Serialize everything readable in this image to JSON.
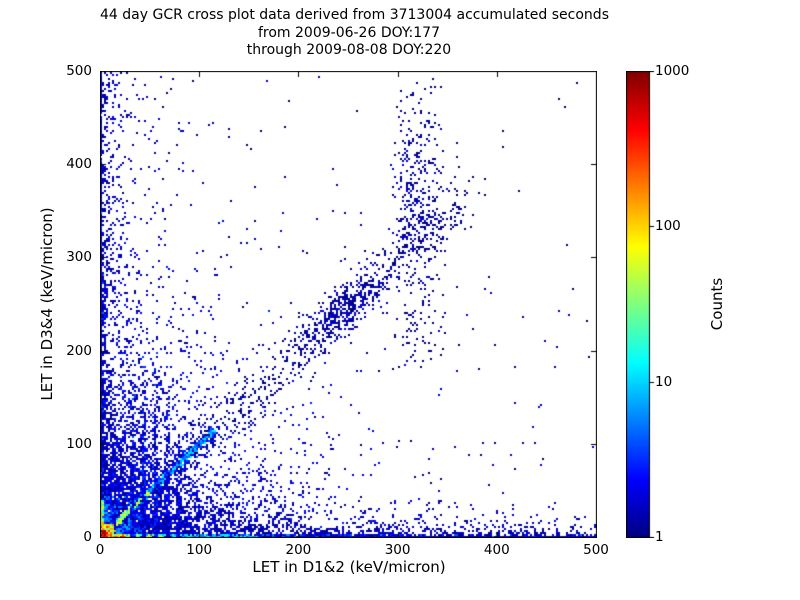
{
  "chart_data": {
    "type": "heatmap",
    "title_lines": [
      "44 day GCR cross plot data derived from 3713004 accumulated seconds",
      "from 2009-06-26 DOY:177",
      "through 2009-08-08 DOY:220"
    ],
    "xlabel": "LET in D1&2 (keV/micron)",
    "ylabel": "LET in D3&4 (keV/micron)",
    "xlim": [
      0,
      500
    ],
    "ylim": [
      0,
      500
    ],
    "xticks": [
      0,
      100,
      200,
      300,
      400,
      500
    ],
    "yticks": [
      0,
      100,
      200,
      300,
      400,
      500
    ],
    "grid": false,
    "background": "#ffffff",
    "frame_color": "#000000",
    "min_count_color": "#000080",
    "max_count_color": "#800000",
    "colorbar": {
      "label": "Counts",
      "scale": "log",
      "min": 1,
      "max": 1000,
      "ticks": [
        1,
        10,
        100,
        1000
      ],
      "colormap": "jet",
      "position": "right"
    },
    "description": "2D histogram of coincident LET in detectors D1&2 vs D3&4; ~1000-count red hot spot at origin, warm band along the x-axis fading red-orange-yellow-cyan-blue with distance, dense blue column along the y-axis, a bright y=x correlation ridge out to ~110 keV/micron continuing as scattered diagonal to ~370 with a blob near 245, faint vertical streaks near x=14,33,44,56,68,79, a loose vertical scatter band near x=320 reaching y=490, and sparse dark-blue single counts elsewhere, densest toward the lower-left.",
    "features": [
      {
        "name": "lower-left-haze",
        "n": 4200,
        "x": {
          "k": "e",
          "a": 0,
          "b": 500,
          "s": 55
        },
        "y": {
          "k": "e",
          "a": 0,
          "b": 500,
          "s": 55
        },
        "c": {
          "min": 1,
          "max": 3
        }
      },
      {
        "name": "broad-haze",
        "n": 500,
        "x": {
          "k": "e",
          "a": 0,
          "b": 500,
          "s": 150
        },
        "y": {
          "k": "e",
          "a": 0,
          "b": 500,
          "s": 150
        },
        "c": {
          "min": 1,
          "max": 2
        }
      },
      {
        "name": "uniform-sparse",
        "n": 80,
        "x": {
          "k": "u",
          "a": 0,
          "b": 500
        },
        "y": {
          "k": "u",
          "a": 0,
          "b": 500
        },
        "c": {
          "min": 1,
          "max": 1
        }
      },
      {
        "name": "left-column",
        "n": 280,
        "x": {
          "k": "e",
          "a": 0,
          "b": 150,
          "s": 35
        },
        "y": {
          "k": "u",
          "a": 100,
          "b": 500
        },
        "c": {
          "min": 1,
          "max": 2
        }
      },
      {
        "name": "left-fuzz",
        "n": 500,
        "x": {
          "k": "e",
          "a": 0,
          "b": 40,
          "s": 10
        },
        "y": {
          "k": "u",
          "a": 0,
          "b": 500
        },
        "c": {
          "min": 1,
          "max": 2
        }
      },
      {
        "name": "left-clump-250",
        "n": 120,
        "x": {
          "k": "e",
          "a": 0,
          "b": 8,
          "s": 3
        },
        "y": {
          "k": "g",
          "m": 250,
          "s": 22
        },
        "c": {
          "min": 1,
          "max": 3
        }
      },
      {
        "name": "left-clump-150",
        "n": 100,
        "x": {
          "k": "e",
          "a": 0,
          "b": 8,
          "s": 3
        },
        "y": {
          "k": "g",
          "m": 150,
          "s": 18
        },
        "c": {
          "min": 1,
          "max": 3
        }
      },
      {
        "name": "bottom-fuzz",
        "n": 1100,
        "x": {
          "k": "e",
          "a": 0,
          "b": 500,
          "s": 400
        },
        "y": {
          "k": "e",
          "a": 0,
          "b": 40,
          "s": 10
        },
        "c": {
          "min": 1,
          "max": 2
        }
      },
      {
        "name": "bottom-line",
        "n": 1500,
        "x": {
          "k": "u",
          "a": 0,
          "b": 500
        },
        "y": {
          "k": "e",
          "a": 0,
          "b": 1.5,
          "s": 1
        },
        "c": {
          "min": 1,
          "max": 2
        }
      },
      {
        "name": "corner-block",
        "n": 900,
        "x": {
          "k": "e",
          "a": 0,
          "b": 45,
          "s": 15
        },
        "y": {
          "k": "e",
          "a": 0,
          "b": 45,
          "s": 15
        },
        "c": {
          "min": 2,
          "max": 8
        }
      },
      {
        "name": "xband-blue",
        "n": 1600,
        "x": {
          "k": "e",
          "a": 0,
          "b": 500,
          "s": 130
        },
        "y": {
          "k": "e",
          "a": 0,
          "b": 4,
          "s": 2
        },
        "c": {
          "min": 1,
          "max": 6
        }
      },
      {
        "name": "xband-far",
        "n": 500,
        "x": {
          "k": "u",
          "a": 200,
          "b": 500
        },
        "y": {
          "k": "e",
          "a": 0,
          "b": 3,
          "s": 1.5
        },
        "c": {
          "min": 1,
          "max": 3
        }
      },
      {
        "name": "xband-cyan",
        "n": 900,
        "x": {
          "k": "e",
          "a": 0,
          "b": 160,
          "s": 50
        },
        "y": {
          "k": "e",
          "a": 0,
          "b": 3.5,
          "s": 1.5
        },
        "c": {
          "min": 4,
          "max": 20
        }
      },
      {
        "name": "xband-green",
        "n": 700,
        "x": {
          "k": "e",
          "a": 0,
          "b": 70,
          "s": 20
        },
        "y": {
          "k": "e",
          "a": 0,
          "b": 3,
          "s": 1.2
        },
        "c": {
          "min": 15,
          "max": 80
        }
      },
      {
        "name": "yband-blue",
        "n": 900,
        "x": {
          "k": "e",
          "a": 0,
          "b": 2.5,
          "s": 1.2
        },
        "y": {
          "k": "e",
          "a": 0,
          "b": 500,
          "s": 120
        },
        "c": {
          "min": 1,
          "max": 5
        }
      },
      {
        "name": "yband-speckle",
        "n": 500,
        "x": {
          "k": "e",
          "a": 0,
          "b": 2,
          "s": 1
        },
        "y": {
          "k": "u",
          "a": 0,
          "b": 500
        },
        "c": {
          "min": 1,
          "max": 3
        }
      },
      {
        "name": "yband-warm",
        "n": 450,
        "x": {
          "k": "e",
          "a": 0,
          "b": 3,
          "s": 1.2
        },
        "y": {
          "k": "e",
          "a": 0,
          "b": 40,
          "s": 15
        },
        "c": {
          "min": 15,
          "max": 150
        }
      },
      {
        "name": "diag-fringe",
        "n": 450,
        "t": {
          "k": "u",
          "a": 0,
          "b": 115
        },
        "sigma": 3.5,
        "c": {
          "min": 1,
          "max": 4
        }
      },
      {
        "name": "diag-mid",
        "n": 550,
        "t": {
          "k": "u",
          "a": 0,
          "b": 115
        },
        "sigma": 1.3,
        "c": {
          "min": 3,
          "max": 15
        }
      },
      {
        "name": "diag-core",
        "n": 500,
        "t": {
          "k": "e",
          "a": 0,
          "b": 50,
          "s": 18
        },
        "sigma": 1.0,
        "c": {
          "min": 15,
          "max": 80
        }
      },
      {
        "name": "diag-extension",
        "n": 520,
        "t": {
          "k": "u",
          "a": 100,
          "b": 370
        },
        "sigma": 12,
        "c": {
          "min": 1,
          "max": 1
        }
      },
      {
        "name": "diag-blob-245",
        "n": 330,
        "t": {
          "k": "g",
          "m": 245,
          "s": 18
        },
        "sigma": 10,
        "c": {
          "min": 1,
          "max": 2
        }
      },
      {
        "name": "streak-x14",
        "n": 120,
        "x": {
          "k": "g",
          "m": 14,
          "s": 1
        },
        "y": {
          "k": "e",
          "a": 0,
          "b": 120,
          "s": 40
        },
        "c": {
          "min": 1,
          "max": 3
        }
      },
      {
        "name": "streak-x33",
        "n": 230,
        "x": {
          "k": "g",
          "m": 33,
          "s": 1.2
        },
        "y": {
          "k": "e",
          "a": 0,
          "b": 170,
          "s": 60
        },
        "c": {
          "min": 1,
          "max": 4
        }
      },
      {
        "name": "streak-x44",
        "n": 260,
        "x": {
          "k": "g",
          "m": 44,
          "s": 1.2
        },
        "y": {
          "k": "e",
          "a": 0,
          "b": 200,
          "s": 70
        },
        "c": {
          "min": 1,
          "max": 4
        }
      },
      {
        "name": "streak-x56",
        "n": 240,
        "x": {
          "k": "g",
          "m": 56,
          "s": 1.2
        },
        "y": {
          "k": "e",
          "a": 0,
          "b": 200,
          "s": 70
        },
        "c": {
          "min": 1,
          "max": 4
        }
      },
      {
        "name": "streak-x68",
        "n": 200,
        "x": {
          "k": "g",
          "m": 68,
          "s": 1.2
        },
        "y": {
          "k": "e",
          "a": 0,
          "b": 160,
          "s": 55
        },
        "c": {
          "min": 1,
          "max": 3
        }
      },
      {
        "name": "streak-x79",
        "n": 150,
        "x": {
          "k": "g",
          "m": 79,
          "s": 1.2
        },
        "y": {
          "k": "e",
          "a": 0,
          "b": 120,
          "s": 45
        },
        "c": {
          "min": 1,
          "max": 3
        }
      },
      {
        "name": "right-vertical-band",
        "n": 230,
        "x": {
          "k": "g",
          "m": 322,
          "s": 14
        },
        "y": {
          "k": "u",
          "a": 180,
          "b": 495
        },
        "c": {
          "min": 1,
          "max": 1
        }
      },
      {
        "name": "right-cluster",
        "n": 200,
        "x": {
          "k": "g",
          "m": 318,
          "s": 12
        },
        "y": {
          "k": "g",
          "m": 360,
          "s": 35
        },
        "c": {
          "min": 1,
          "max": 2
        }
      },
      {
        "name": "xband-hot",
        "n": 900,
        "x": {
          "k": "e",
          "a": 0,
          "b": 25,
          "s": 8
        },
        "y": {
          "k": "e",
          "a": 0,
          "b": 2.5,
          "s": 1
        },
        "c": {
          "min": 60,
          "max": 600
        }
      },
      {
        "name": "core-outer",
        "n": 400,
        "x": {
          "k": "e",
          "a": 0,
          "b": 15,
          "s": 6
        },
        "y": {
          "k": "e",
          "a": 0,
          "b": 15,
          "s": 6
        },
        "c": {
          "min": 30,
          "max": 300
        }
      },
      {
        "name": "core-hot",
        "n": 500,
        "x": {
          "k": "e",
          "a": 0,
          "b": 7,
          "s": 3
        },
        "y": {
          "k": "e",
          "a": 0,
          "b": 7,
          "s": 3
        },
        "c": {
          "min": 200,
          "max": 1000
        }
      }
    ]
  }
}
